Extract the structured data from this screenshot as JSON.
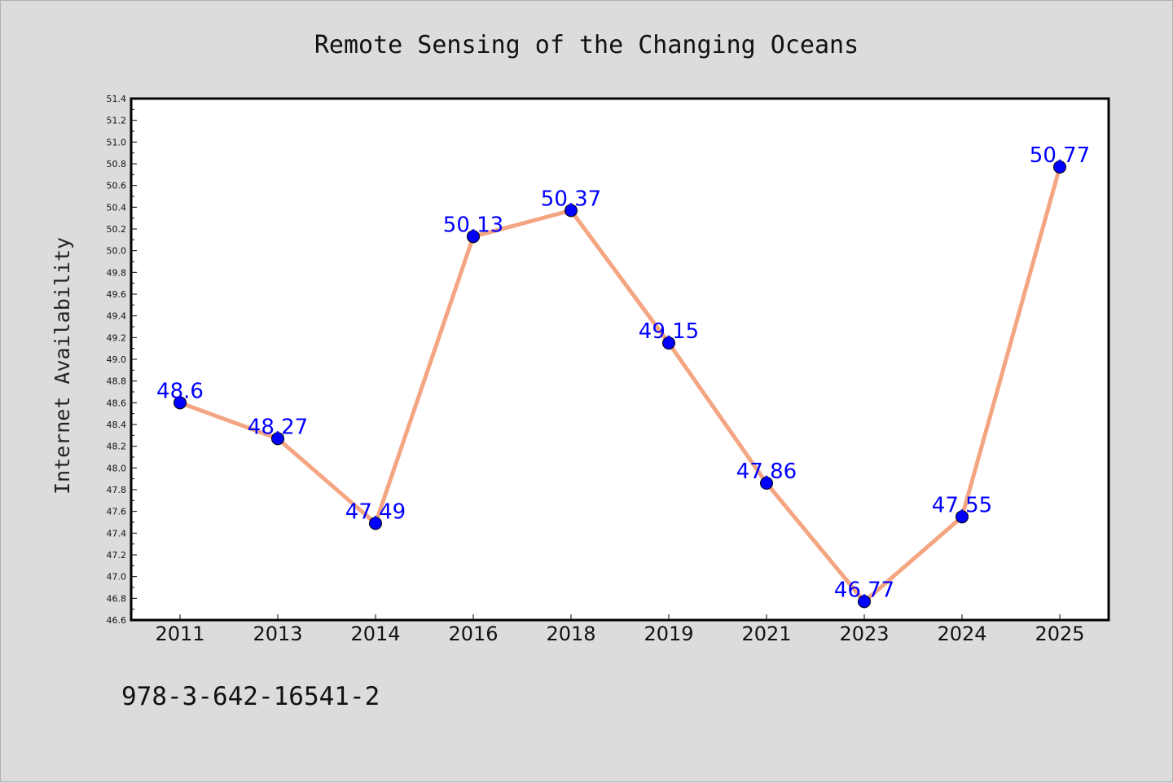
{
  "chart_data": {
    "type": "line",
    "title": "Remote Sensing of the Changing Oceans",
    "xlabel": "",
    "ylabel": "Internet Availability",
    "categories": [
      "2011",
      "2013",
      "2014",
      "2016",
      "2018",
      "2019",
      "2021",
      "2023",
      "2024",
      "2025"
    ],
    "values": [
      48.6,
      48.27,
      47.49,
      50.13,
      50.37,
      49.15,
      47.86,
      46.77,
      47.55,
      50.77
    ],
    "data_labels": [
      "48.6",
      "48.27",
      "47.49",
      "50.13",
      "50.37",
      "49.15",
      "47.86",
      "46.77",
      "47.55",
      "50.77"
    ],
    "ylim": [
      46.6,
      51.4
    ],
    "yticks": [
      "46.6",
      "46.8",
      "47.0",
      "47.2",
      "47.4",
      "47.6",
      "47.8",
      "48.0",
      "48.2",
      "48.4",
      "48.6",
      "48.8",
      "49.0",
      "49.2",
      "49.4",
      "49.6",
      "49.8",
      "50.0",
      "50.2",
      "50.4",
      "50.6",
      "50.8",
      "51.0",
      "51.2",
      "51.4"
    ],
    "grid": false,
    "legend": "none",
    "colors": {
      "line": "#f4a582",
      "marker": "#0000ff",
      "label": "#0000ff",
      "plot_background": "#ffffff",
      "figure_background": "#dcdcdc"
    }
  },
  "footer": {
    "isbn": "978-3-642-16541-2"
  }
}
